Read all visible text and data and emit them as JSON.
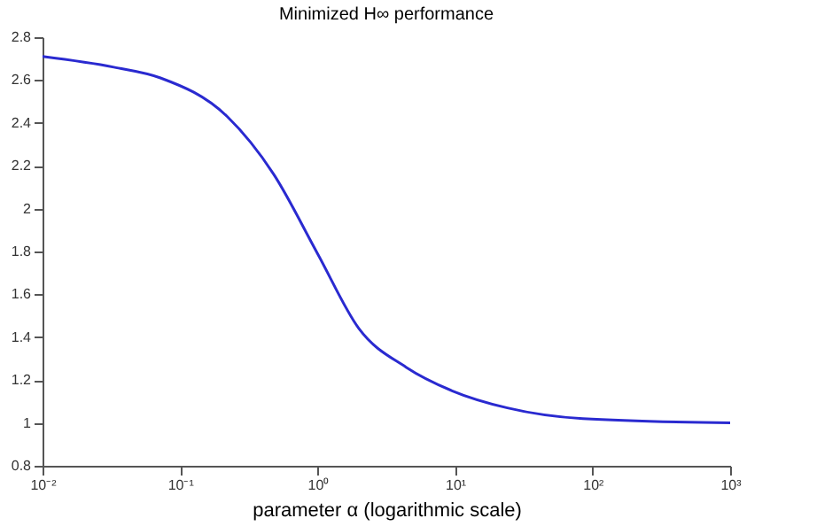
{
  "chart_data": {
    "type": "line",
    "title": "Minimized H∞ performance",
    "xlabel": "parameter  α  (logarithmic scale)",
    "log": "x",
    "x": [
      0.01,
      0.033,
      0.072,
      0.22,
      0.48,
      1,
      2,
      4.4,
      9.5,
      24,
      85,
      1000
    ],
    "series": [
      {
        "color": "#2a2ad0",
        "values": [
          2.71,
          2.66,
          2.61,
          2.43,
          2.16,
          1.79,
          1.44,
          1.26,
          1.15,
          1.07,
          1.02,
          1.0
        ]
      }
    ],
    "xlim": [
      0.01,
      1000
    ],
    "ylim": [
      0.8,
      2.8
    ],
    "xticks": [
      {
        "value": 0.01,
        "label": "10⁻²"
      },
      {
        "value": 0.1,
        "label": "10⁻¹"
      },
      {
        "value": 1,
        "label": "10⁰"
      },
      {
        "value": 10,
        "label": "10¹"
      },
      {
        "value": 100,
        "label": "10²"
      },
      {
        "value": 1000,
        "label": "10³"
      }
    ],
    "yticks": [
      0.8,
      1,
      1.2,
      1.4,
      1.6,
      1.8,
      2,
      2.2,
      2.4,
      2.6,
      2.8
    ],
    "grid": false,
    "marker": "none",
    "line_style": "solid"
  }
}
